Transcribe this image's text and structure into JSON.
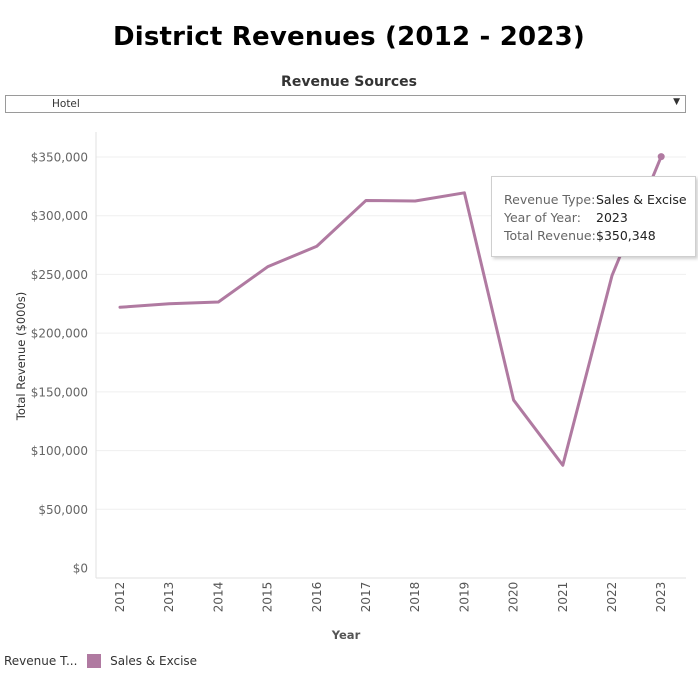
{
  "title": "District Revenues (2012 - 2023)",
  "filter": {
    "label": "Revenue Sources",
    "selected": "Hotel"
  },
  "tooltip": {
    "rows": [
      {
        "key": "Revenue Type:",
        "value": "Sales & Excise"
      },
      {
        "key": "Year of Year:",
        "value": "2023"
      },
      {
        "key": "Total Revenue:",
        "value": "$350,348"
      }
    ]
  },
  "legend": {
    "title": "Revenue T...",
    "items": [
      {
        "label": "Sales & Excise",
        "color": "#b07aa1"
      }
    ]
  },
  "chart_data": {
    "type": "line",
    "title": "",
    "xlabel": "Year",
    "ylabel": "Total Revenue ($000s)",
    "categories": [
      "2012",
      "2013",
      "2014",
      "2015",
      "2016",
      "2017",
      "2018",
      "2019",
      "2020",
      "2021",
      "2022",
      "2023"
    ],
    "series": [
      {
        "name": "Sales & Excise",
        "color": "#b07aa1",
        "values": [
          222000,
          225000,
          226500,
          256500,
          274000,
          313000,
          312500,
          319500,
          143000,
          87500,
          249000,
          350348
        ]
      }
    ],
    "ylim": [
      0,
      350000
    ],
    "yticks": [
      0,
      50000,
      100000,
      150000,
      200000,
      250000,
      300000,
      350000
    ],
    "ytick_labels": [
      "$0",
      "$50,000",
      "$100,000",
      "$150,000",
      "$200,000",
      "$250,000",
      "$300,000",
      "$350,000"
    ],
    "grid": true,
    "highlight_point": "2023"
  }
}
